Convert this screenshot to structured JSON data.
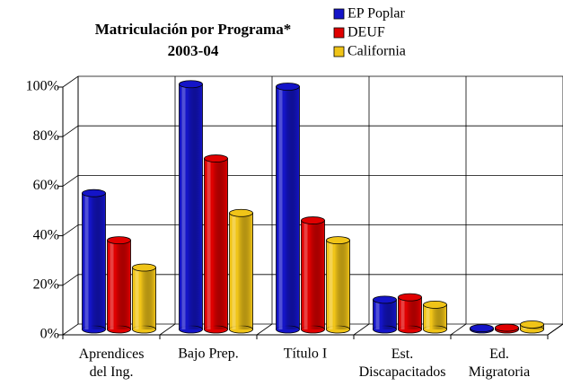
{
  "chart_data": {
    "type": "bar3d",
    "title": "Matriculación por Programa*",
    "subtitle": "2003-04",
    "categories": [
      "Aprendices del Ing.",
      "Bajo Prep.",
      "Título I",
      "Est. Discapacitados",
      "Ed. Migratoria"
    ],
    "series": [
      {
        "name": "EP Poplar",
        "color": "#1414c8",
        "values": [
          55,
          99,
          98,
          12,
          0.5
        ]
      },
      {
        "name": "DEUF",
        "color": "#e00000",
        "values": [
          36,
          69,
          44,
          13,
          0.7
        ]
      },
      {
        "name": "California",
        "color": "#f0c418",
        "values": [
          25,
          47,
          36,
          10,
          2
        ]
      }
    ],
    "ylim": [
      0,
      100
    ],
    "yticks": [
      {
        "value": 0,
        "label": "0%"
      },
      {
        "value": 20,
        "label": "20%"
      },
      {
        "value": 40,
        "label": "40%"
      },
      {
        "value": 60,
        "label": "60%"
      },
      {
        "value": 80,
        "label": "80%"
      },
      {
        "value": 100,
        "label": "100%"
      }
    ],
    "grid": true,
    "legend": "top-right"
  }
}
